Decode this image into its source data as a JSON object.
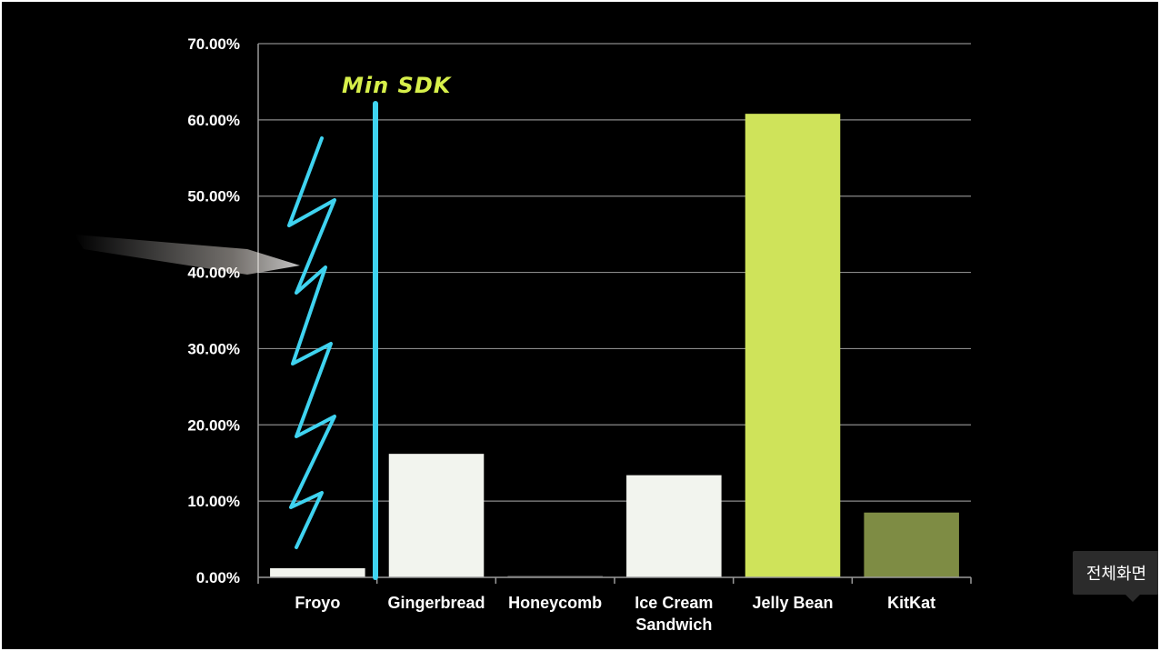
{
  "tooltip": {
    "label": "전체화면"
  },
  "annotation": {
    "label": "Min SDK",
    "color": "#3fd3f0"
  },
  "chart_data": {
    "type": "bar",
    "categories": [
      "Froyo",
      "Gingerbread",
      "Honeycomb",
      "Ice Cream Sandwich",
      "Jelly Bean",
      "KitKat"
    ],
    "category_lines": [
      [
        "Froyo"
      ],
      [
        "Gingerbread"
      ],
      [
        "Honeycomb"
      ],
      [
        "Ice Cream",
        "Sandwich"
      ],
      [
        "Jelly Bean"
      ],
      [
        "KitKat"
      ]
    ],
    "values": [
      1.2,
      16.2,
      0.1,
      13.4,
      60.8,
      8.5
    ],
    "colors": [
      "#f2f4ee",
      "#f2f4ee",
      "#3a3a3a",
      "#f2f4ee",
      "#cfe35a",
      "#7e8c44"
    ],
    "ylim": [
      0,
      70
    ],
    "yticks": [
      "0.00%",
      "10.00%",
      "20.00%",
      "30.00%",
      "40.00%",
      "50.00%",
      "60.00%",
      "70.00%"
    ],
    "grid": true,
    "title": "",
    "xlabel": "",
    "ylabel": ""
  }
}
